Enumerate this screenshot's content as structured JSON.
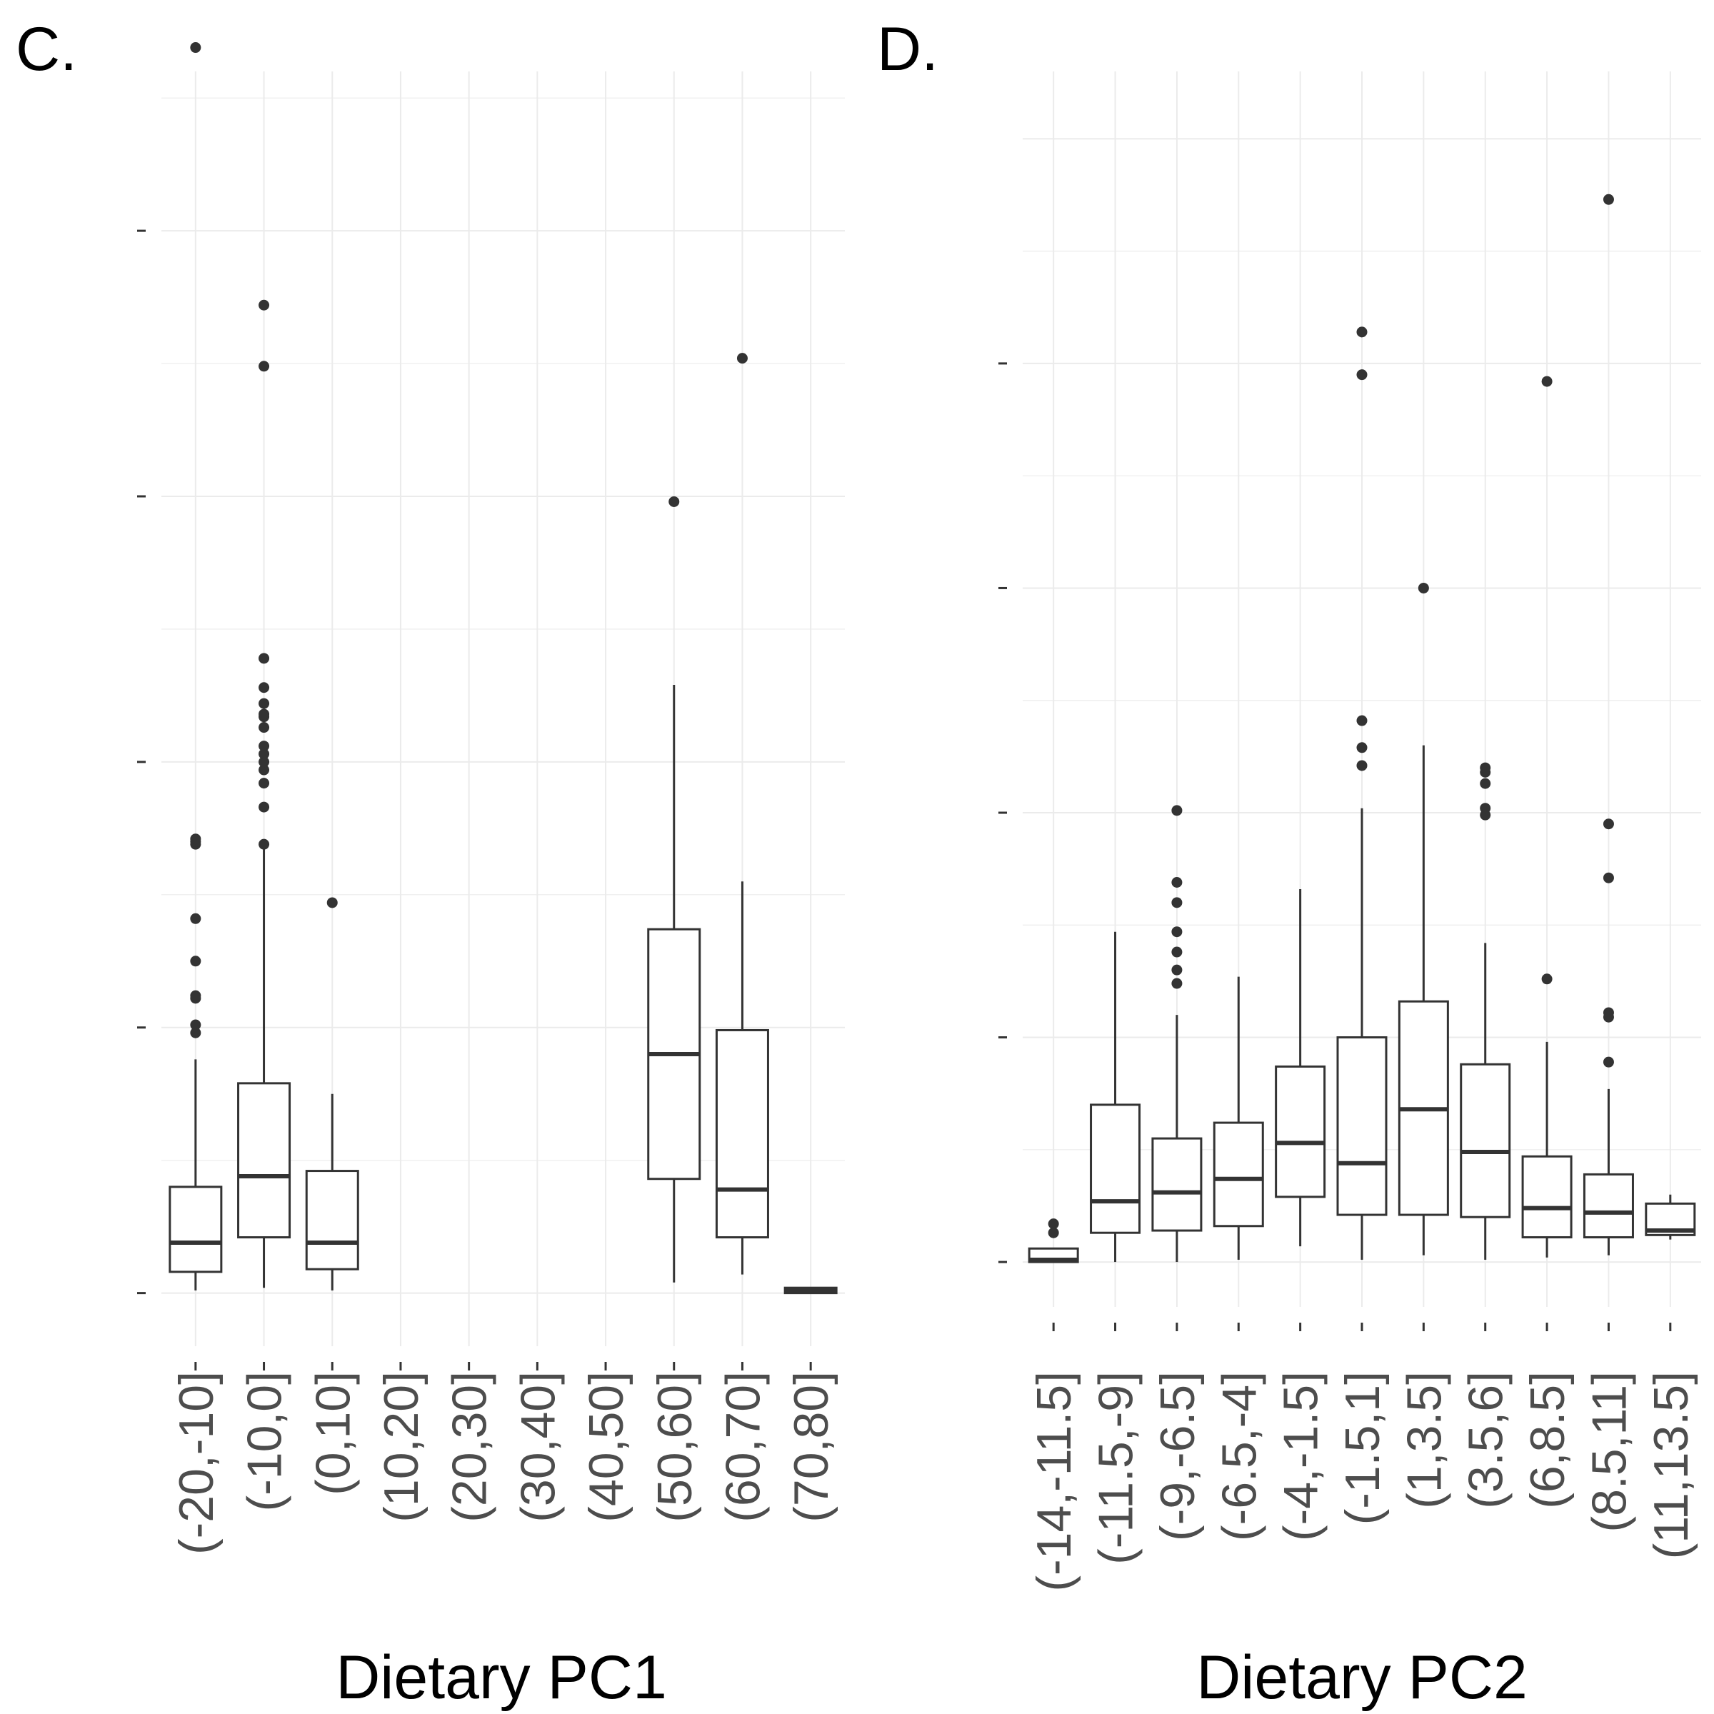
{
  "chart_data": [
    {
      "type": "box",
      "panel_label": "C.",
      "title": "",
      "xlabel": "Dietary PC1",
      "ylabel": "",
      "categories": [
        "(-20,-10]",
        "(-10,0]",
        "(0,10]",
        "(10,20]",
        "(20,30]",
        "(30,40]",
        "(40,50]",
        "(50,60]",
        "(60,70]",
        "(70,80]"
      ],
      "y_tick_count": 5,
      "ylim": [
        -0.2,
        4.6
      ],
      "grid": true,
      "legend": "none",
      "boxes": [
        {
          "category": "(-20,-10]",
          "min": 0.01,
          "q1": 0.08,
          "median": 0.19,
          "q3": 0.4,
          "max": 0.88,
          "outliers": [
            0.98,
            1.01,
            1.11,
            1.12,
            1.25,
            1.41,
            1.69,
            1.7,
            1.71,
            4.69
          ]
        },
        {
          "category": "(-10,0]",
          "min": 0.02,
          "q1": 0.21,
          "median": 0.44,
          "q3": 0.79,
          "max": 1.7,
          "outliers": [
            1.69,
            1.83,
            1.92,
            1.97,
            2.0,
            2.03,
            2.06,
            2.13,
            2.17,
            2.18,
            2.22,
            2.28,
            2.39,
            3.49,
            3.72
          ]
        },
        {
          "category": "(0,10]",
          "min": 0.01,
          "q1": 0.09,
          "median": 0.19,
          "q3": 0.46,
          "max": 0.75,
          "outliers": [
            1.47
          ]
        },
        {
          "category": "(10,20]",
          "empty": true
        },
        {
          "category": "(20,30]",
          "empty": true
        },
        {
          "category": "(30,40]",
          "empty": true
        },
        {
          "category": "(40,50]",
          "empty": true
        },
        {
          "category": "(50,60]",
          "min": 0.04,
          "q1": 0.43,
          "median": 0.9,
          "q3": 1.37,
          "max": 2.29,
          "outliers": [
            2.98
          ]
        },
        {
          "category": "(60,70]",
          "min": 0.07,
          "q1": 0.21,
          "median": 0.39,
          "q3": 0.99,
          "max": 1.55,
          "outliers": [
            3.52
          ]
        },
        {
          "category": "(70,80]",
          "min": 0.0,
          "q1": 0.0,
          "median": 0.01,
          "q3": 0.02,
          "max": 0.02,
          "outliers": []
        }
      ]
    },
    {
      "type": "box",
      "panel_label": "D.",
      "title": "",
      "xlabel": "Dietary PC2",
      "ylabel": "",
      "categories": [
        "(-14,-11.5]",
        "(-11.5,-9]",
        "(-9,-6.5]",
        "(-6.5,-4]",
        "(-4,-1.5]",
        "(-1.5,1]",
        "(1,3.5]",
        "(3.5,6]",
        "(6,8.5]",
        "(8.5,11]",
        "(11,13.5]"
      ],
      "y_tick_count": 5,
      "ylim": [
        -0.2,
        5.3
      ],
      "grid": true,
      "legend": "none",
      "boxes": [
        {
          "category": "(-14,-11.5]",
          "min": 0.0,
          "q1": 0.0,
          "median": 0.01,
          "q3": 0.06,
          "max": 0.06,
          "outliers": [
            0.13,
            0.17
          ]
        },
        {
          "category": "(-11.5,-9]",
          "min": 0.0,
          "q1": 0.13,
          "median": 0.27,
          "q3": 0.7,
          "max": 1.47,
          "outliers": []
        },
        {
          "category": "(-9,-6.5]",
          "min": 0.0,
          "q1": 0.14,
          "median": 0.31,
          "q3": 0.55,
          "max": 1.1,
          "outliers": [
            1.24,
            1.3,
            1.38,
            1.47,
            1.6,
            1.69,
            2.01
          ]
        },
        {
          "category": "(-6.5,-4]",
          "min": 0.01,
          "q1": 0.16,
          "median": 0.37,
          "q3": 0.62,
          "max": 1.27,
          "outliers": []
        },
        {
          "category": "(-4,-1.5]",
          "min": 0.07,
          "q1": 0.29,
          "median": 0.53,
          "q3": 0.87,
          "max": 1.66,
          "outliers": []
        },
        {
          "category": "(-1.5,1]",
          "min": 0.01,
          "q1": 0.21,
          "median": 0.44,
          "q3": 1.0,
          "max": 2.02,
          "outliers": [
            2.21,
            2.29,
            2.41,
            3.95,
            4.14
          ]
        },
        {
          "category": "(1,3.5]",
          "min": 0.03,
          "q1": 0.21,
          "median": 0.68,
          "q3": 1.16,
          "max": 2.3,
          "outliers": [
            3.0
          ]
        },
        {
          "category": "(3.5,6]",
          "min": 0.01,
          "q1": 0.2,
          "median": 0.49,
          "q3": 0.88,
          "max": 1.42,
          "outliers": [
            1.99,
            2.02,
            2.13,
            2.18,
            2.2
          ]
        },
        {
          "category": "(6,8.5]",
          "min": 0.02,
          "q1": 0.11,
          "median": 0.24,
          "q3": 0.47,
          "max": 0.98,
          "outliers": [
            1.26,
            3.92
          ]
        },
        {
          "category": "(8.5,11]",
          "min": 0.03,
          "q1": 0.11,
          "median": 0.22,
          "q3": 0.39,
          "max": 0.77,
          "outliers": [
            0.89,
            1.09,
            1.11,
            1.71,
            1.95,
            4.73
          ]
        },
        {
          "category": "(11,13.5]",
          "min": 0.1,
          "q1": 0.12,
          "median": 0.14,
          "q3": 0.26,
          "max": 0.3,
          "outliers": []
        }
      ]
    }
  ]
}
